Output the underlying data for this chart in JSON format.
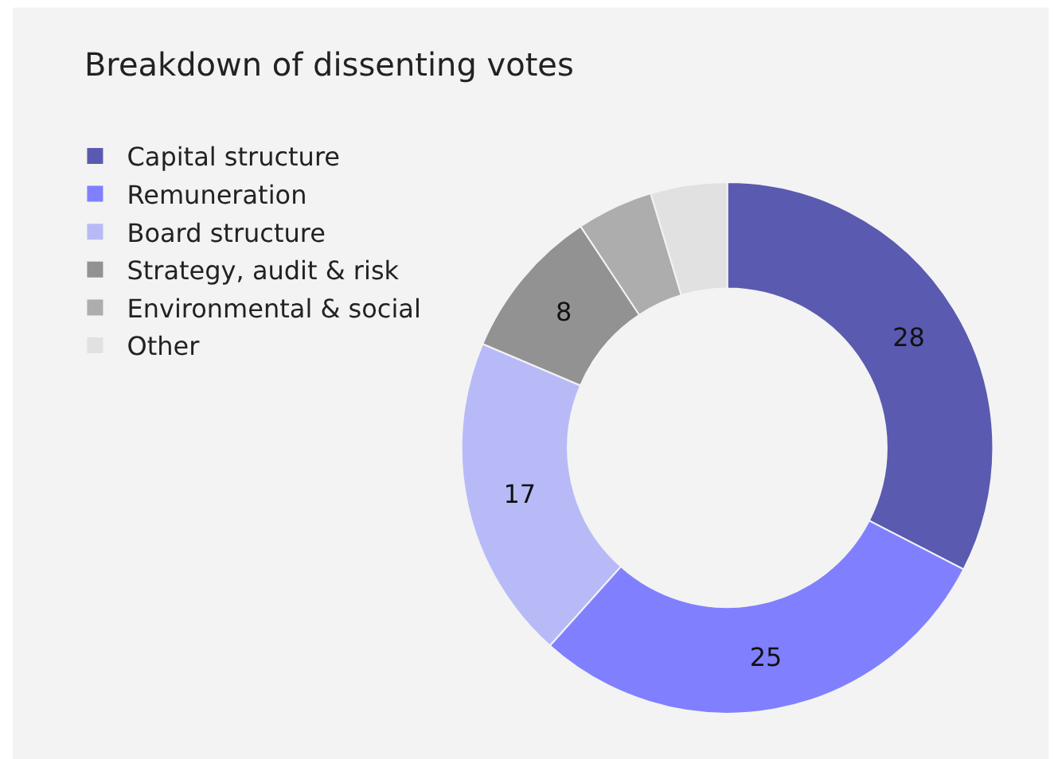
{
  "chart_data": {
    "type": "donut",
    "title": "Breakdown of dissenting votes",
    "categories": [
      "Capital structure",
      "Remuneration",
      "Board structure",
      "Strategy, audit & risk",
      "Environmental & social",
      "Other"
    ],
    "values": [
      28,
      25,
      17,
      8,
      4,
      4
    ],
    "colors": [
      "#5a5ab0",
      "#8080ff",
      "#b8baf8",
      "#929292",
      "#adadad",
      "#e1e1e1"
    ],
    "value_labels": [
      "28",
      "25",
      "17",
      "8",
      null,
      null
    ],
    "legend": "top left"
  }
}
